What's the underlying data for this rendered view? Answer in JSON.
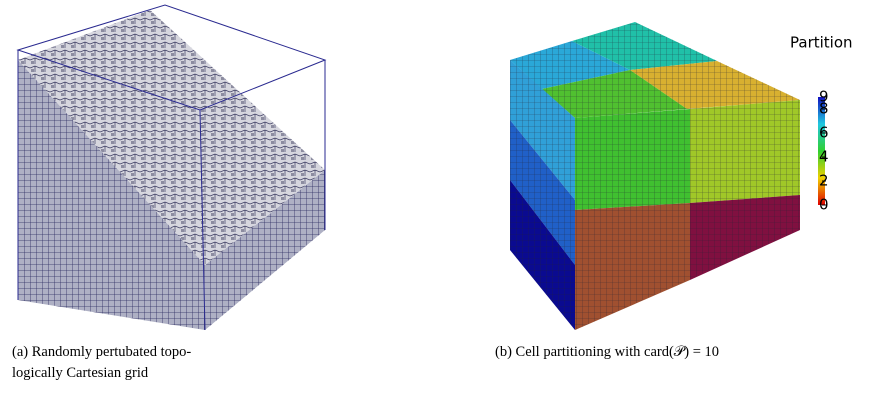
{
  "figure": {
    "panels": [
      {
        "caption_lines": [
          "(a) Randomly pertubated topo-",
          "logically Cartesian grid"
        ]
      },
      {
        "caption_lines": [
          "(b) Cell partitioning with card(𝒫) = 10"
        ],
        "colorbar": {
          "title": "Partition",
          "lim": [
            0,
            9
          ],
          "ticks": [
            0,
            2,
            4,
            6,
            8,
            9
          ]
        }
      }
    ]
  }
}
